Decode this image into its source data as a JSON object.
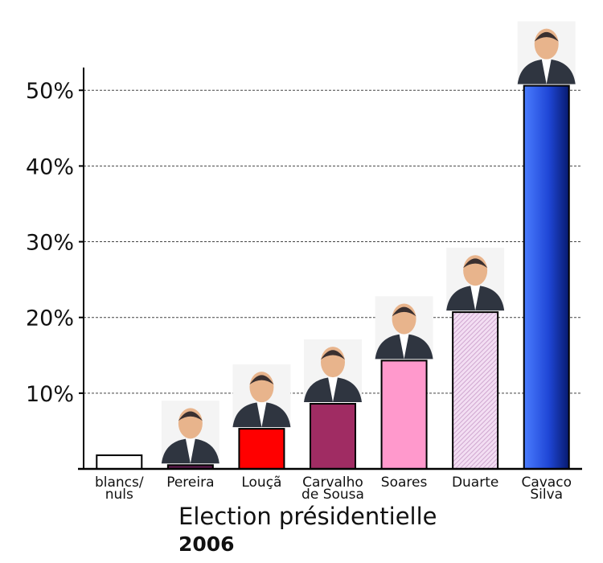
{
  "chart_data": {
    "type": "bar",
    "title": "Election présidentielle",
    "subtitle": "2006",
    "categories": [
      [
        "blancs/",
        "nuls"
      ],
      [
        "Pereira"
      ],
      [
        "Louçã"
      ],
      [
        "Carvalho",
        "de Sousa"
      ],
      [
        "Soares"
      ],
      [
        "Duarte"
      ],
      [
        "Cavaco",
        "Silva"
      ]
    ],
    "values": [
      1.8,
      0.5,
      5.3,
      8.6,
      14.3,
      20.7,
      50.6
    ],
    "colors": [
      "#ffffff",
      "#5a1a4a",
      "#ff0000",
      "#a02c63",
      "#ff99cc",
      "#d9b3d9",
      "#2d5cf0"
    ],
    "yticks": [
      {
        "value": 10,
        "label": "10%"
      },
      {
        "value": 20,
        "label": "20%"
      },
      {
        "value": 30,
        "label": "30%"
      },
      {
        "value": 40,
        "label": "40%"
      },
      {
        "value": 50,
        "label": "50%"
      }
    ],
    "ylim": [
      0,
      53
    ],
    "grid": true,
    "portraits": [
      "",
      "person-portrait",
      "person-portrait",
      "person-portrait",
      "person-portrait",
      "person-portrait",
      "person-portrait"
    ]
  }
}
